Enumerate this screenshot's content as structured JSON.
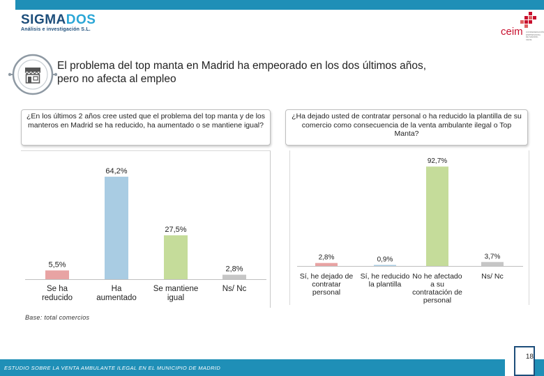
{
  "header": {
    "brand_part1": "SIGMA",
    "brand_part2": "DOS",
    "brand_subtitle": "Análisis e investigación S.L.",
    "partner_logo": "ceim",
    "partner_tagline": "CONFEDERACIÓN EMPRESARIAL DE MADRID-CEOE"
  },
  "title": {
    "line1": "El problema del top manta en Madrid ha empeorado en los dos últimos años,",
    "line2": "pero no afecta al empleo",
    "icon": "storefront-icon"
  },
  "questions": {
    "q1": "¿En los últimos 2 años cree usted que el problema del top manta y de los manteros en Madrid se ha reducido, ha aumentado o se mantiene igual?",
    "q2": "¿Ha dejado usted de contratar personal o ha reducido la plantilla de su comercio como consecuencia de la venta ambulante ilegal o Top Manta?"
  },
  "chart_data": [
    {
      "type": "bar",
      "title": "",
      "categories": [
        [
          "Se ha",
          "reducido"
        ],
        [
          "Ha",
          "aumentado"
        ],
        [
          "Se mantiene",
          "igual"
        ],
        [
          "Ns/ Nc"
        ]
      ],
      "values": [
        5.5,
        64.2,
        27.5,
        2.8
      ],
      "labels": [
        "5,5%",
        "64,2%",
        "27,5%",
        "2,8%"
      ],
      "colors": [
        "#e8a3a3",
        "#a9cce3",
        "#c5dc9a",
        "#c6c6c6"
      ],
      "ylim": [
        0,
        75
      ],
      "xlabel": "",
      "ylabel": ""
    },
    {
      "type": "bar",
      "title": "",
      "categories": [
        [
          "Sí, he dejado de",
          "contratar",
          "personal"
        ],
        [
          "Sí, he reducido",
          "la plantilla"
        ],
        [
          "No he afectado",
          "a su",
          "contratación de",
          "personal"
        ],
        [
          "Ns/ Nc"
        ]
      ],
      "values": [
        2.8,
        0.9,
        92.7,
        3.7
      ],
      "labels": [
        "2,8%",
        "0,9%",
        "92,7%",
        "3,7%"
      ],
      "colors": [
        "#e8a3a3",
        "#a9cce3",
        "#c5dc9a",
        "#c6c6c6"
      ],
      "ylim": [
        0,
        100
      ],
      "xlabel": "",
      "ylabel": ""
    }
  ],
  "base_note": "Base: total comercios",
  "footer": {
    "text": "ESTUDIO SOBRE LA VENTA AMBULANTE ILEGAL EN EL MUNICIPIO DE MADRID",
    "page_number": "18"
  },
  "colors": {
    "accent_bar": "#1f8fb7",
    "brand_dark": "#1c4d7a",
    "partner_red": "#c8102e"
  }
}
